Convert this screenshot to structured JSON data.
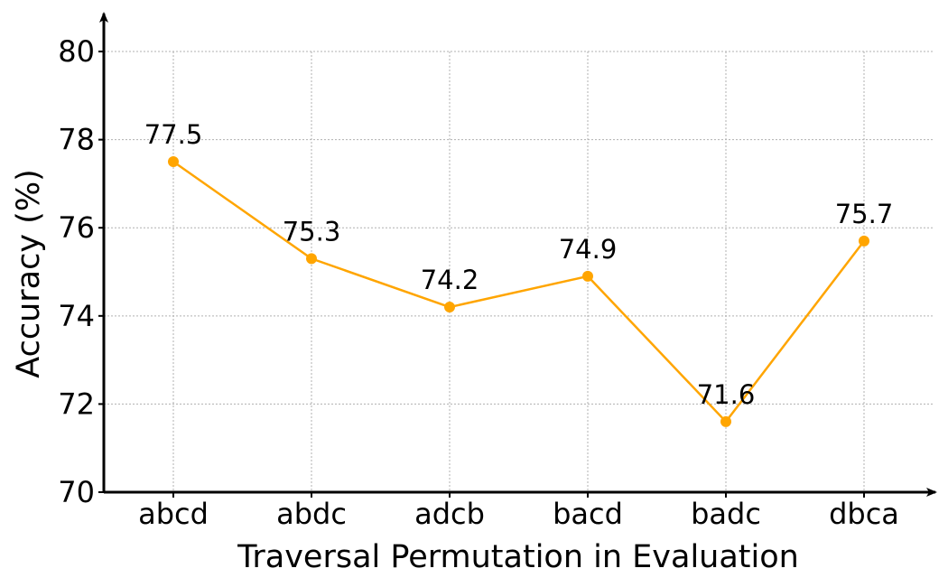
{
  "chart_data": {
    "type": "line",
    "categories": [
      "abcd",
      "abdc",
      "adcb",
      "bacd",
      "badc",
      "dbca"
    ],
    "series": [
      {
        "values": [
          77.5,
          75.3,
          74.2,
          74.9,
          71.6,
          75.7
        ],
        "color": "#FFA500",
        "marker": "circle"
      }
    ],
    "data_labels": [
      "77.5",
      "75.3",
      "74.2",
      "74.9",
      "71.6",
      "75.7"
    ],
    "title": "",
    "xlabel": "Traversal Permutation in Evaluation",
    "ylabel": "Accuracy (%)",
    "ylim": [
      70,
      80.8
    ],
    "yticks": [
      70,
      72,
      74,
      76,
      78,
      80
    ],
    "ytick_labels": [
      "70",
      "72",
      "74",
      "76",
      "78",
      "80"
    ],
    "grid": true,
    "legend": "none"
  }
}
